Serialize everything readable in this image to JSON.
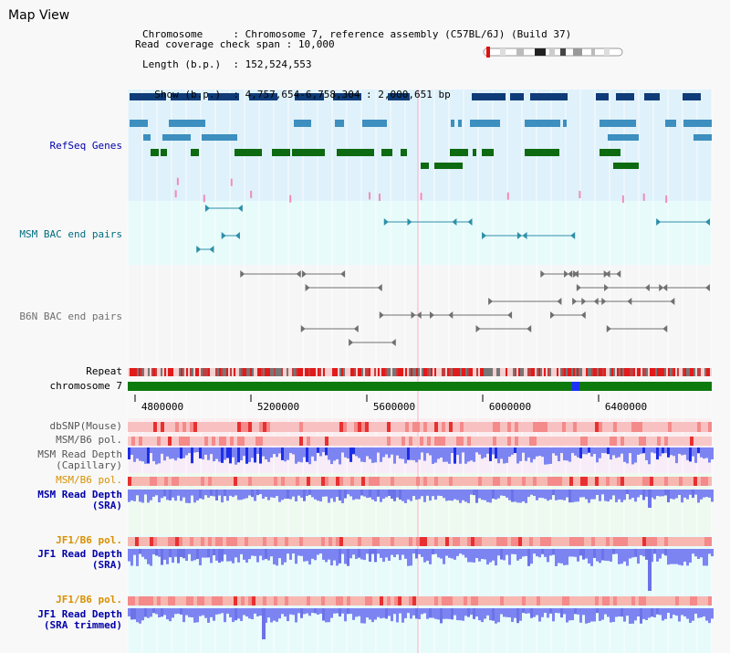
{
  "window": {
    "title": "Map View"
  },
  "info": {
    "chromosome_label": "Chromosome",
    "chromosome_value": "Chromosome 7, reference assembly (C57BL/6J) (Build 37)",
    "length_label": "Length (b.p.)",
    "length_value": "152,524,553",
    "show_label": "Show (b.p.)",
    "show_value": "4,757,654-6,758,304 : 2,000,651 bp",
    "coverage_label": "Read coverage check span",
    "coverage_value": "10,000"
  },
  "tracks": {
    "refseq": "RefSeq Genes",
    "msm_bac": "MSM BAC end pairs",
    "b6n_bac": "B6N BAC end pairs",
    "repeat": "Repeat",
    "chromosome": "chromosome 7",
    "dbsnp": "dbSNP(Mouse)",
    "msm_b6_pol_1": "MSM/B6 pol.",
    "msm_depth_cap_1": "MSM Read Depth",
    "msm_depth_cap_2": "(Capillary)",
    "msm_b6_pol_2": "MSM/B6 pol.",
    "msm_depth_sra_1": "MSM Read Depth",
    "msm_depth_sra_2": "(SRA)",
    "jf1_b6_pol_1": "JF1/B6 pol.",
    "jf1_depth_sra_1": "JF1 Read Depth",
    "jf1_depth_sra_2": "(SRA)",
    "jf1_b6_pol_2": "JF1/B6 pol.",
    "jf1_depth_trim_1": "JF1 Read Depth",
    "jf1_depth_trim_2": "(SRA trimmed)"
  },
  "ruler": {
    "ticks": [
      "4800000",
      "5200000",
      "5600000",
      "6000000",
      "6400000"
    ]
  },
  "colors": {
    "refseq_bg": "#dff1fb",
    "bac_bg": "#e8fbfb",
    "gene_dark": "#0f3c78",
    "gene_mid": "#3d8fbf",
    "gene_green": "#0d6a10",
    "msm_bac": "#2e8fa8",
    "b6n_bac": "#707070",
    "chrom_green": "#0c7a0c",
    "label_blue": "#0000aa",
    "label_teal": "#006d7f",
    "label_orange": "#d89000",
    "label_gray": "#555555",
    "depth_blue": "#1e2ee6",
    "depth_light": "#7c84f2"
  }
}
